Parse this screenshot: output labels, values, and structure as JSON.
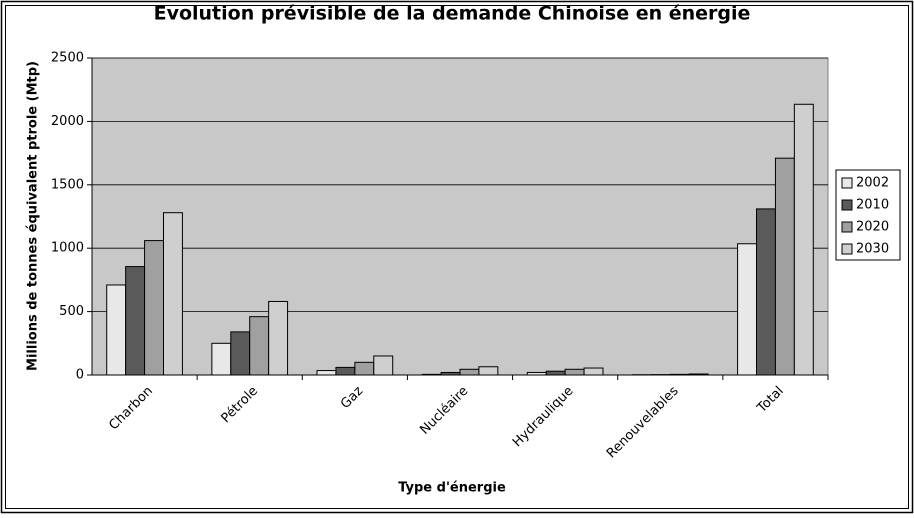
{
  "chart_data": {
    "type": "bar",
    "title": "Evolution prévisible de la demande Chinoise en énergie",
    "x_label": "Type d'énergie",
    "y_label": "Millions de tonnes équivalent ptrole (Mtp)",
    "categories": [
      "Charbon",
      "Pétrole",
      "Gaz",
      "Nucléaire",
      "Hydraulique",
      "Renouvelables",
      "Total"
    ],
    "series": [
      {
        "name": "2002",
        "color": "#e8e8e8",
        "values": [
          710,
          250,
          35,
          5,
          20,
          2,
          1035
        ]
      },
      {
        "name": "2010",
        "color": "#5a5a5a",
        "values": [
          855,
          340,
          60,
          20,
          30,
          3,
          1310
        ]
      },
      {
        "name": "2020",
        "color": "#a0a0a0",
        "values": [
          1060,
          460,
          100,
          45,
          45,
          5,
          1710
        ]
      },
      {
        "name": "2030",
        "color": "#cfcfcf",
        "values": [
          1280,
          580,
          150,
          65,
          55,
          8,
          2135
        ]
      }
    ],
    "ylim": [
      0,
      2500
    ],
    "yticks": [
      0,
      500,
      1000,
      1500,
      2000,
      2500
    ],
    "grid": true,
    "legend": "right"
  }
}
